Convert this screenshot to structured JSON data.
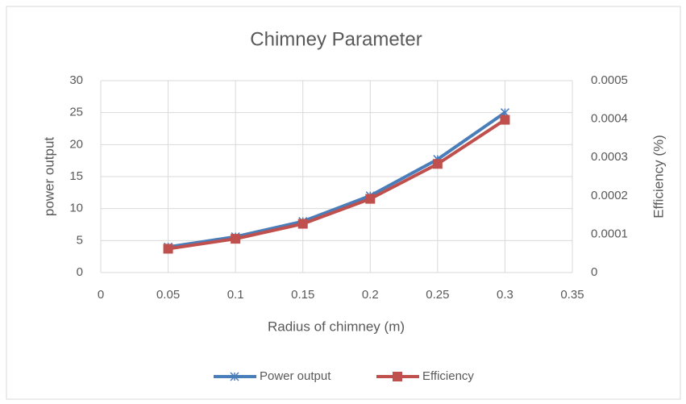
{
  "chart_data": {
    "type": "line",
    "title": "Chimney Parameter",
    "x_label": "Radius of chimney (m)",
    "y_label": "power output",
    "y2_label": "Efficiency (%)",
    "x": [
      0.05,
      0.1,
      0.15,
      0.2,
      0.25,
      0.3
    ],
    "series": [
      {
        "name": "Power output",
        "color": "#4a7ebb",
        "marker": "asterisk",
        "values": [
          4,
          5.6,
          8,
          12,
          17.7,
          25
        ]
      },
      {
        "name": "Efficiency",
        "color": "#c0504d",
        "marker": "square",
        "axis": "y2",
        "values": [
          6.2e-05,
          8.8e-05,
          0.000127,
          0.000192,
          0.000283,
          0.000398
        ]
      }
    ],
    "xlim": [
      0,
      0.35
    ],
    "xticks": [
      0,
      0.05,
      0.1,
      0.15,
      0.2,
      0.25,
      0.3,
      0.35
    ],
    "ylim": [
      0,
      30
    ],
    "yticks": [
      0,
      5,
      10,
      15,
      20,
      25,
      30
    ],
    "y2lim": [
      0,
      0.0005
    ],
    "y2ticks": [
      0,
      0.0001,
      0.0002,
      0.0003,
      0.0004,
      0.0005
    ],
    "grid": true,
    "legend": "bottom"
  }
}
